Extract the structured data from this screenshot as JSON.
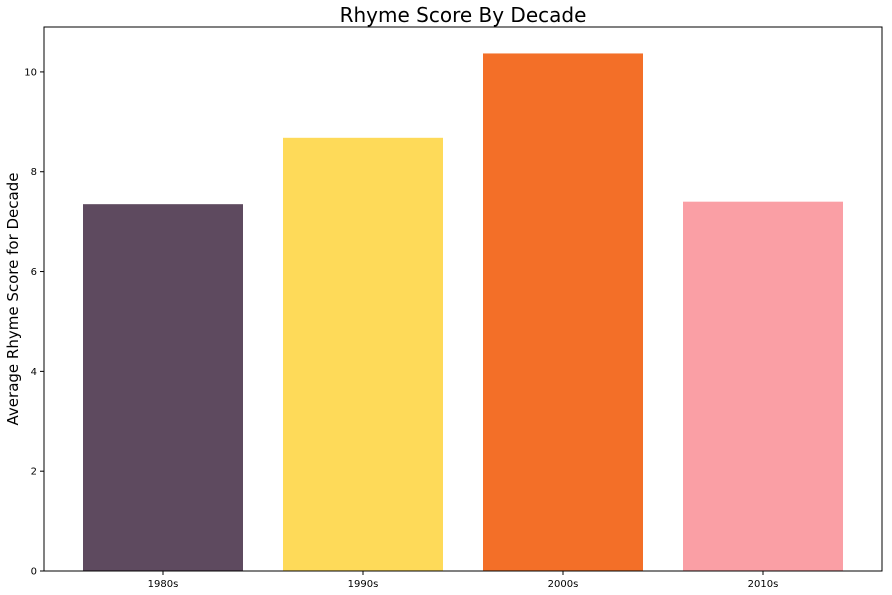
{
  "chart_data": {
    "type": "bar",
    "title": "Rhyme Score By Decade",
    "xlabel": "",
    "ylabel": "Average Rhyme Score for Decade",
    "categories": [
      "1980s",
      "1990s",
      "2000s",
      "2010s"
    ],
    "values": [
      7.35,
      8.68,
      10.37,
      7.4
    ],
    "colors": [
      "#5e4a5f",
      "#feda59",
      "#f36f28",
      "#fa9fa5"
    ],
    "ylim": [
      0,
      10.9
    ],
    "yticks": [
      0,
      2,
      4,
      6,
      8,
      10
    ],
    "grid": false,
    "legend": "none"
  }
}
